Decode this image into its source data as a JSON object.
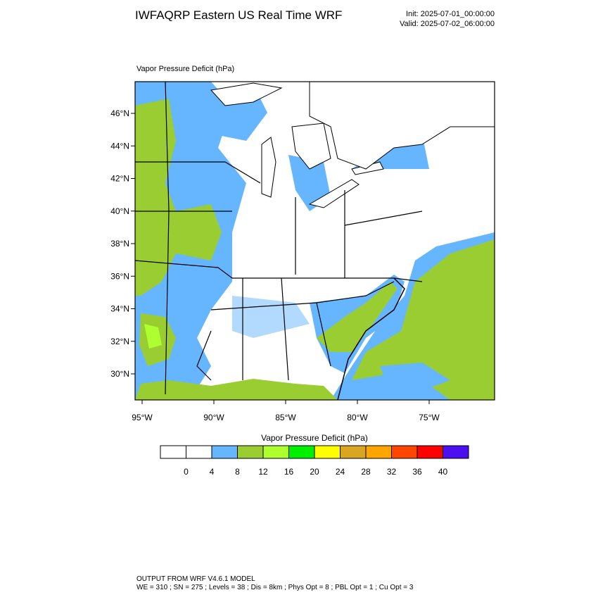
{
  "header": {
    "title": "IWFAQRP Eastern US Real Time WRF",
    "init": "Init: 2025-07-01_00:00:00",
    "valid": "Valid: 2025-07-02_06:00:00"
  },
  "map": {
    "label": "Vapor Pressure Deficit   (hPa)",
    "lat_labels": [
      "46°N",
      "44°N",
      "42°N",
      "40°N",
      "38°N",
      "36°N",
      "34°N",
      "32°N",
      "30°N"
    ],
    "lon_labels": [
      "95°W",
      "90°W",
      "85°W",
      "80°W",
      "75°W"
    ]
  },
  "colorbar": {
    "title": "Vapor Pressure Deficit  (hPa)",
    "colors": [
      "#ffffff",
      "#ffffff",
      "#66b5ff",
      "#9acd32",
      "#adff2f",
      "#00ee00",
      "#ffff00",
      "#daa520",
      "#ffa500",
      "#ff4500",
      "#ff0000",
      "#4b10f0"
    ],
    "labels": [
      0,
      4,
      8,
      12,
      16,
      20,
      24,
      28,
      32,
      36,
      40
    ]
  },
  "footer": {
    "line1": "OUTPUT FROM WRF V4.6.1 MODEL",
    "line2": "WE = 310 ; SN = 275 ; Levels = 38 ; Dis = 8km ; Phys Opt = 8 ; PBL Opt = 1 ; Cu Opt = 3"
  }
}
